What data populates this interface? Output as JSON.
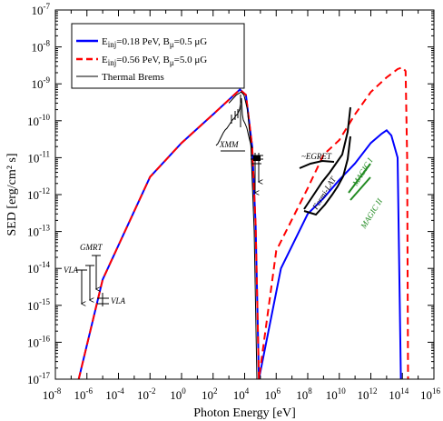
{
  "chart_data": {
    "type": "line",
    "xlabel": "Photon Energy [eV]",
    "ylabel": "SED [erg/cm² s]",
    "x_scale": "log",
    "y_scale": "log",
    "xlim": [
      1e-08,
      1e+16
    ],
    "ylim": [
      1e-17,
      1e-07
    ],
    "x_ticks": [
      "10^-8",
      "10^-6",
      "10^-4",
      "10^-2",
      "10^0",
      "10^2",
      "10^4",
      "10^6",
      "10^8",
      "10^10",
      "10^12",
      "10^14",
      "10^16"
    ],
    "y_ticks": [
      "10^-17",
      "10^-16",
      "10^-15",
      "10^-14",
      "10^-13",
      "10^-12",
      "10^-11",
      "10^-10",
      "10^-9",
      "10^-8",
      "10^-7"
    ],
    "grid": false,
    "legend_position": "top-left",
    "series": [
      {
        "name": "E_inj=0.18 PeV, B_μ=0.5 μG",
        "legend_main": "E",
        "legend_sub1": "inj",
        "legend_mid": "=0.18 PeV, B",
        "legend_sub2": "μ",
        "legend_end": "=0.5 μG",
        "color": "#0000ff",
        "style": "solid",
        "points": [
          [
            3e-07,
            1e-17
          ],
          [
            1e-05,
            5e-15
          ],
          [
            0.01,
            3e-12
          ],
          [
            1,
            2.5e-11
          ],
          [
            100,
            1.5e-10
          ],
          [
            5000,
            7e-10
          ],
          [
            12000,
            5e-10
          ],
          [
            30000,
            2e-11
          ],
          [
            50000,
            1.5e-13
          ],
          [
            80000,
            1e-17
          ],
          [
            2000000.0,
            1e-14
          ],
          [
            100000000.0,
            3e-13
          ],
          [
            1000000000.0,
            8e-13
          ],
          [
            10000000000.0,
            2.5e-12
          ],
          [
            100000000000.0,
            7e-12
          ],
          [
            1000000000000.0,
            2.5e-11
          ],
          [
            5000000000000.0,
            4.5e-11
          ],
          [
            10000000000000.0,
            5.5e-11
          ],
          [
            20000000000000.0,
            4e-11
          ],
          [
            50000000000000.0,
            1e-11
          ],
          [
            80000000000000.0,
            1e-17
          ]
        ]
      },
      {
        "name": "E_inj=0.56 PeV, B_μ=5.0 μG",
        "legend_main": "E",
        "legend_sub1": "inj",
        "legend_mid": "=0.56 PeV, B",
        "legend_sub2": "μ",
        "legend_end": "=5.0 μG",
        "color": "#ff0000",
        "style": "dashed",
        "points": [
          [
            3e-07,
            1e-17
          ],
          [
            1e-05,
            5e-15
          ],
          [
            0.01,
            3e-12
          ],
          [
            1,
            2.5e-11
          ],
          [
            100,
            1.5e-10
          ],
          [
            5000,
            7e-10
          ],
          [
            12000,
            5e-10
          ],
          [
            30000,
            2e-11
          ],
          [
            50000,
            1.5e-13
          ],
          [
            80000,
            1e-17
          ],
          [
            1000000.0,
            3e-14
          ],
          [
            100000000.0,
            1.5e-12
          ],
          [
            1000000000.0,
            1.2e-11
          ],
          [
            10000000000.0,
            3e-11
          ],
          [
            100000000000.0,
            1.5e-10
          ],
          [
            1000000000000.0,
            6e-10
          ],
          [
            10000000000000.0,
            1.5e-09
          ],
          [
            50000000000000.0,
            2.5e-09
          ],
          [
            100000000000000.0,
            2.8e-09
          ],
          [
            160000000000000.0,
            2.2e-09
          ],
          [
            200000000000000.0,
            1e-11
          ],
          [
            230000000000000.0,
            1e-17
          ]
        ]
      },
      {
        "name": "Thermal Brems",
        "color": "#000000",
        "style": "solid",
        "points": [
          [
            1000,
            3e-10
          ],
          [
            3000,
            5e-10
          ],
          [
            6000,
            6e-10
          ],
          [
            9000,
            5e-10
          ],
          [
            15000,
            2e-10
          ],
          [
            25000,
            2e-11
          ],
          [
            40000,
            1e-13
          ],
          [
            60000,
            1e-17
          ]
        ]
      }
    ],
    "annotations": [
      "XMM",
      "~EGRET",
      "Fermi-LAT",
      "MAGIC I",
      "MAGIC II",
      "GMRT",
      "VLA",
      "VLA"
    ],
    "upper_limits": [
      {
        "x": 1.5e-06,
        "y": 3e-14
      },
      {
        "x": 3e-06,
        "y": 1e-14
      },
      {
        "x": 8e-06,
        "y": 2e-14
      },
      {
        "x": 20000.0,
        "y": 1.2e-11
      }
    ]
  }
}
